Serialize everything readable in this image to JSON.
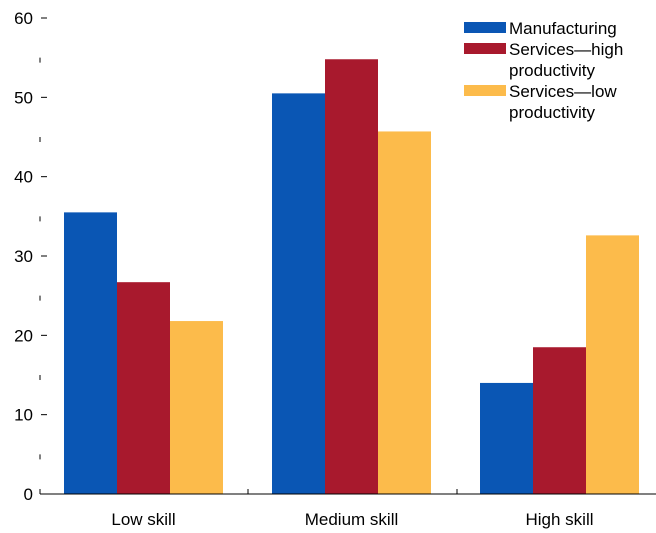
{
  "chart_data": {
    "type": "bar",
    "categories": [
      "Low skill",
      "Medium skill",
      "High skill"
    ],
    "series": [
      {
        "name": "Manufacturing",
        "color": "#0a56b4",
        "values": [
          35.5,
          50.5,
          14
        ]
      },
      {
        "name": "Services—high productivity",
        "color": "#a8192d",
        "values": [
          26.7,
          54.8,
          18.5
        ]
      },
      {
        "name": "Services—low productivity",
        "color": "#fcbb4b",
        "values": [
          21.8,
          45.7,
          32.6
        ]
      }
    ],
    "ylim": [
      0,
      60
    ],
    "yticks_major": [
      0,
      10,
      20,
      30,
      40,
      50,
      60
    ],
    "yticks_major_labels": [
      "0",
      "10",
      "20",
      "30",
      "40",
      "50",
      "60"
    ],
    "yticks_minor": [
      5,
      15,
      25,
      35,
      45,
      55
    ],
    "grid": false,
    "legend_position": "top-right",
    "legend_lines": [
      [
        "Manufacturing"
      ],
      [
        "Services—high",
        "productivity"
      ],
      [
        "Services—low",
        "productivity"
      ]
    ]
  }
}
